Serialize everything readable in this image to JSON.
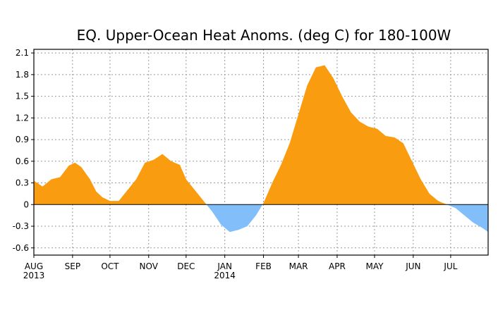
{
  "chart_data": {
    "type": "area",
    "title": "EQ. Upper-Ocean Heat Anoms. (deg C) for 180-100W",
    "xlabel": "",
    "ylabel": "",
    "ylim": [
      -0.7,
      2.15
    ],
    "yticks": [
      2.1,
      1.8,
      1.5,
      1.2,
      0.9,
      0.6,
      0.3,
      0,
      -0.3,
      -0.6
    ],
    "ytick_labels": [
      "2.1",
      "1.8",
      "1.5",
      "1.2",
      "0.9",
      "0.6",
      "0.3",
      "0",
      "-0.3",
      "-0.6"
    ],
    "xlim": [
      "2013-08-01",
      "2014-07-31"
    ],
    "xticks": [
      {
        "date": "2013-08-01",
        "label": "AUG",
        "sublabel": "2013"
      },
      {
        "date": "2013-09-01",
        "label": "SEP",
        "sublabel": ""
      },
      {
        "date": "2013-10-01",
        "label": "OCT",
        "sublabel": ""
      },
      {
        "date": "2013-11-01",
        "label": "NOV",
        "sublabel": ""
      },
      {
        "date": "2013-12-01",
        "label": "DEC",
        "sublabel": ""
      },
      {
        "date": "2014-01-01",
        "label": "JAN",
        "sublabel": "2014"
      },
      {
        "date": "2014-02-01",
        "label": "FEB",
        "sublabel": ""
      },
      {
        "date": "2014-03-01",
        "label": "MAR",
        "sublabel": ""
      },
      {
        "date": "2014-04-01",
        "label": "APR",
        "sublabel": ""
      },
      {
        "date": "2014-05-01",
        "label": "MAY",
        "sublabel": ""
      },
      {
        "date": "2014-06-01",
        "label": "JUN",
        "sublabel": ""
      },
      {
        "date": "2014-07-01",
        "label": "JUL",
        "sublabel": ""
      }
    ],
    "grid": true,
    "positive_color": "#f99c10",
    "negative_color": "#82bffa",
    "series": [
      {
        "x": [
          "2013-08-01",
          "2013-08-08",
          "2013-08-15",
          "2013-08-22",
          "2013-08-29",
          "2013-09-03",
          "2013-09-08",
          "2013-09-15",
          "2013-09-20",
          "2013-09-25",
          "2013-10-01",
          "2013-10-08",
          "2013-10-15",
          "2013-10-22",
          "2013-10-29",
          "2013-11-05",
          "2013-11-12",
          "2013-11-19",
          "2013-11-26",
          "2013-12-01",
          "2013-12-08",
          "2013-12-15",
          "2013-12-22",
          "2013-12-29",
          "2014-01-05",
          "2014-01-12",
          "2014-01-19",
          "2014-01-26",
          "2014-02-01",
          "2014-02-08",
          "2014-02-15",
          "2014-02-22",
          "2014-03-01",
          "2014-03-08",
          "2014-03-15",
          "2014-03-22",
          "2014-03-29",
          "2014-04-05",
          "2014-04-12",
          "2014-04-19",
          "2014-04-26",
          "2014-05-03",
          "2014-05-10",
          "2014-05-17",
          "2014-05-24",
          "2014-05-31",
          "2014-06-07",
          "2014-06-14",
          "2014-06-21",
          "2014-06-28",
          "2014-07-05",
          "2014-07-12",
          "2014-07-19",
          "2014-07-26",
          "2014-07-31"
        ],
        "values": [
          0.33,
          0.25,
          0.35,
          0.38,
          0.54,
          0.58,
          0.52,
          0.35,
          0.18,
          0.1,
          0.05,
          0.05,
          0.2,
          0.35,
          0.58,
          0.62,
          0.7,
          0.6,
          0.55,
          0.35,
          0.2,
          0.05,
          -0.1,
          -0.28,
          -0.38,
          -0.35,
          -0.3,
          -0.15,
          0.02,
          0.3,
          0.55,
          0.85,
          1.25,
          1.65,
          1.9,
          1.93,
          1.75,
          1.5,
          1.28,
          1.15,
          1.08,
          1.05,
          0.95,
          0.93,
          0.85,
          0.6,
          0.35,
          0.15,
          0.05,
          0.0,
          -0.05,
          -0.15,
          -0.25,
          -0.32,
          -0.38
        ]
      }
    ]
  }
}
